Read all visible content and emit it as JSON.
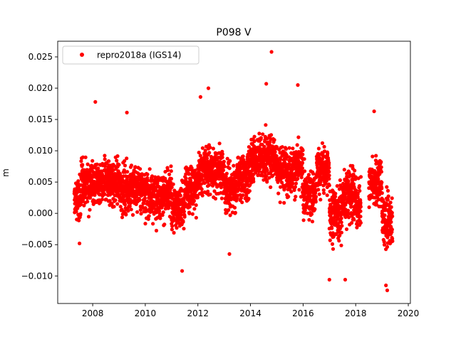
{
  "chart_data": {
    "type": "scatter",
    "title": "P098 V",
    "xlabel": "",
    "ylabel": "m",
    "xlim": [
      2006.67,
      2020.08
    ],
    "ylim": [
      -0.0144,
      0.0275
    ],
    "xticks": [
      2008,
      2010,
      2012,
      2014,
      2016,
      2018,
      2020
    ],
    "xtick_labels": [
      "2008",
      "2010",
      "2012",
      "2014",
      "2016",
      "2018",
      "2020"
    ],
    "yticks": [
      -0.01,
      -0.005,
      0.0,
      0.005,
      0.01,
      0.015,
      0.02,
      0.025
    ],
    "ytick_labels": [
      "−0.010",
      "−0.005",
      "0.000",
      "0.005",
      "0.010",
      "0.015",
      "0.020",
      "0.025"
    ],
    "grid": false,
    "legend": {
      "placement": "top-left",
      "entries": [
        {
          "label": "repro2018a (IGS14)",
          "color": "#ff0000",
          "marker": "circle"
        }
      ]
    },
    "series": [
      {
        "name": "repro2018a (IGS14)",
        "color": "#ff0000",
        "approx_daily_envelope": [
          {
            "x_start": 2007.3,
            "x_end": 2007.55,
            "mean": 0.002,
            "spread": 0.003
          },
          {
            "x_start": 2007.55,
            "x_end": 2008.0,
            "mean": 0.005,
            "spread": 0.003
          },
          {
            "x_start": 2008.0,
            "x_end": 2009.0,
            "mean": 0.005,
            "spread": 0.003
          },
          {
            "x_start": 2009.0,
            "x_end": 2010.0,
            "mean": 0.004,
            "spread": 0.003
          },
          {
            "x_start": 2010.0,
            "x_end": 2011.0,
            "mean": 0.003,
            "spread": 0.003
          },
          {
            "x_start": 2011.0,
            "x_end": 2011.5,
            "mean": 0.001,
            "spread": 0.003
          },
          {
            "x_start": 2011.5,
            "x_end": 2012.0,
            "mean": 0.004,
            "spread": 0.003
          },
          {
            "x_start": 2012.0,
            "x_end": 2013.0,
            "mean": 0.007,
            "spread": 0.003
          },
          {
            "x_start": 2013.0,
            "x_end": 2013.5,
            "mean": 0.004,
            "spread": 0.003
          },
          {
            "x_start": 2013.5,
            "x_end": 2014.0,
            "mean": 0.006,
            "spread": 0.003
          },
          {
            "x_start": 2014.0,
            "x_end": 2015.0,
            "mean": 0.009,
            "spread": 0.003
          },
          {
            "x_start": 2015.0,
            "x_end": 2016.0,
            "mean": 0.007,
            "spread": 0.003
          },
          {
            "x_start": 2016.0,
            "x_end": 2016.5,
            "mean": 0.003,
            "spread": 0.003
          },
          {
            "x_start": 2016.5,
            "x_end": 2017.0,
            "mean": 0.007,
            "spread": 0.003
          },
          {
            "x_start": 2017.0,
            "x_end": 2017.5,
            "mean": 0.0,
            "spread": 0.0035
          },
          {
            "x_start": 2017.5,
            "x_end": 2018.0,
            "mean": 0.003,
            "spread": 0.0035
          },
          {
            "x_start": 2018.0,
            "x_end": 2018.2,
            "mean": 0.001,
            "spread": 0.003
          },
          {
            "x_start": 2018.5,
            "x_end": 2019.0,
            "mean": 0.005,
            "spread": 0.003
          },
          {
            "x_start": 2019.0,
            "x_end": 2019.4,
            "mean": -0.001,
            "spread": 0.003
          }
        ],
        "notable_points": [
          [
            2014.8,
            0.0258
          ],
          [
            2008.1,
            0.0178
          ],
          [
            2011.4,
            -0.0092
          ],
          [
            2019.2,
            -0.0123
          ],
          [
            2019.15,
            -0.0115
          ],
          [
            2017.0,
            -0.0106
          ],
          [
            2017.6,
            -0.0106
          ],
          [
            2018.7,
            0.0163
          ],
          [
            2015.8,
            0.0205
          ],
          [
            2012.4,
            0.02
          ],
          [
            2012.1,
            0.0186
          ],
          [
            2007.5,
            -0.0048
          ],
          [
            2014.6,
            0.0207
          ],
          [
            2009.3,
            0.0161
          ],
          [
            2013.2,
            -0.0065
          ]
        ]
      }
    ]
  }
}
